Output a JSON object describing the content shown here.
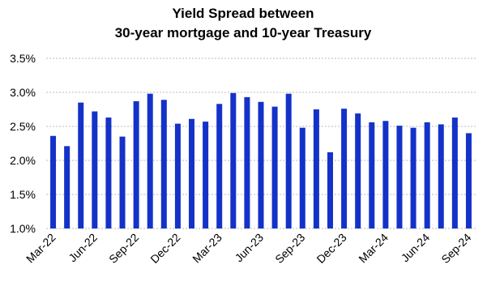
{
  "chart_data": {
    "type": "bar",
    "title": [
      "Yield Spread between",
      "30-year mortgage and 10-year Treasury"
    ],
    "categories": [
      "Mar-22",
      null,
      null,
      "Jun-22",
      null,
      null,
      "Sep-22",
      null,
      null,
      "Dec-22",
      null,
      null,
      "Mar-23",
      null,
      null,
      "Jun-23",
      null,
      null,
      "Sep-23",
      null,
      null,
      "Dec-23",
      null,
      null,
      "Mar-24",
      null,
      null,
      "Jun-24",
      null,
      null,
      "Sep-24"
    ],
    "values": [
      2.36,
      2.21,
      2.85,
      2.72,
      2.63,
      2.35,
      2.87,
      2.98,
      2.89,
      2.54,
      2.61,
      2.57,
      2.83,
      2.99,
      2.93,
      2.86,
      2.79,
      2.98,
      2.48,
      2.75,
      2.12,
      2.76,
      2.69,
      2.56,
      2.58,
      2.51,
      2.48,
      2.56,
      2.53,
      2.63,
      2.4
    ],
    "color": "#1432c8",
    "ylim": [
      1.0,
      3.5
    ],
    "yticks": [
      {
        "value": 1.0,
        "label": "1.0%"
      },
      {
        "value": 1.5,
        "label": "1.5%"
      },
      {
        "value": 2.0,
        "label": "2.0%"
      },
      {
        "value": 2.5,
        "label": "2.5%"
      },
      {
        "value": 3.0,
        "label": "3.0%"
      },
      {
        "value": 3.5,
        "label": "3.5%"
      }
    ],
    "grid": true
  }
}
